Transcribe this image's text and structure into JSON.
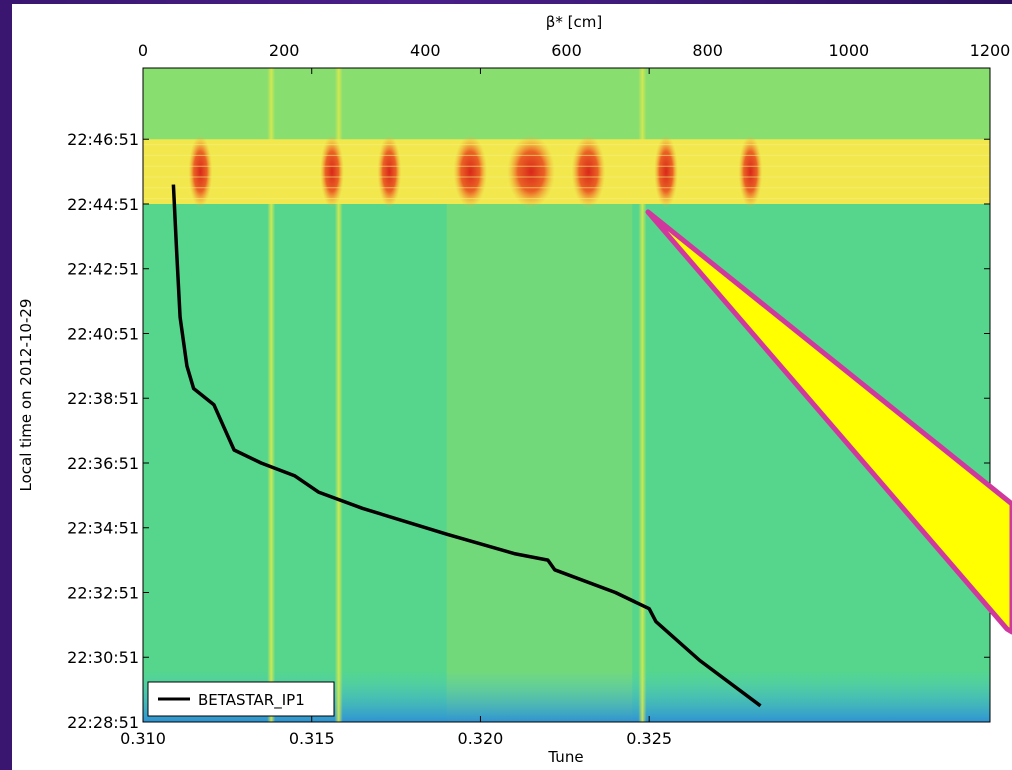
{
  "chart_data": {
    "type": "heatmap",
    "xlabel": "Tune",
    "x_ticks": [
      "0.310",
      "0.315",
      "0.320",
      "0.325"
    ],
    "x_tick_values": [
      0.31,
      0.315,
      0.32,
      0.325
    ],
    "xlim": [
      0.31,
      0.3351
    ],
    "x2label": "β* [cm]",
    "x2_ticks": [
      "0",
      "200",
      "400",
      "600",
      "800",
      "1000",
      "1200"
    ],
    "x2_tick_values": [
      0,
      200,
      400,
      600,
      800,
      1000,
      1200
    ],
    "x2lim": [
      0,
      1200
    ],
    "ylabel": "Local time on 2012-10-29",
    "y_ticks": [
      "22:28:51",
      "22:30:51",
      "22:32:51",
      "22:34:51",
      "22:36:51",
      "22:38:51",
      "22:40:51",
      "22:42:51",
      "22:44:51",
      "22:46:51"
    ],
    "ylim_minutes": [
      0,
      20.2
    ],
    "y_tick_minutes": [
      0,
      2,
      4,
      6,
      8,
      10,
      12,
      14,
      16,
      18
    ],
    "colormap": "jet",
    "background_color": "#55d68c",
    "hot_band_minutes": [
      16,
      18
    ],
    "hot_band_peak_tunes": [
      0.3117,
      0.3156,
      0.3173,
      0.3197,
      0.3215,
      0.3232,
      0.3255,
      0.328
    ],
    "vertical_lines_tune": [
      0.3138,
      0.3158,
      0.3248
    ],
    "series": [
      {
        "name": "BETASTAR_IP1",
        "color": "#000000",
        "points": [
          [
            0.3109,
            16.6
          ],
          [
            0.311,
            14.5
          ],
          [
            0.3111,
            12.5
          ],
          [
            0.3113,
            11.0
          ],
          [
            0.3115,
            10.3
          ],
          [
            0.3121,
            9.8
          ],
          [
            0.3124,
            9.1
          ],
          [
            0.3127,
            8.4
          ],
          [
            0.3135,
            8.0
          ],
          [
            0.3145,
            7.6
          ],
          [
            0.3152,
            7.1
          ],
          [
            0.3165,
            6.6
          ],
          [
            0.319,
            5.8
          ],
          [
            0.321,
            5.2
          ],
          [
            0.322,
            5.0
          ],
          [
            0.3222,
            4.7
          ],
          [
            0.324,
            4.0
          ],
          [
            0.325,
            3.5
          ],
          [
            0.3252,
            3.1
          ],
          [
            0.3265,
            1.9
          ],
          [
            0.3283,
            0.5
          ]
        ]
      }
    ],
    "legend": {
      "position": "bottom-left",
      "entries": [
        "BETASTAR_IP1"
      ]
    },
    "annotation": "yellow callout wedge with magenta outline pointing to the hot band"
  }
}
